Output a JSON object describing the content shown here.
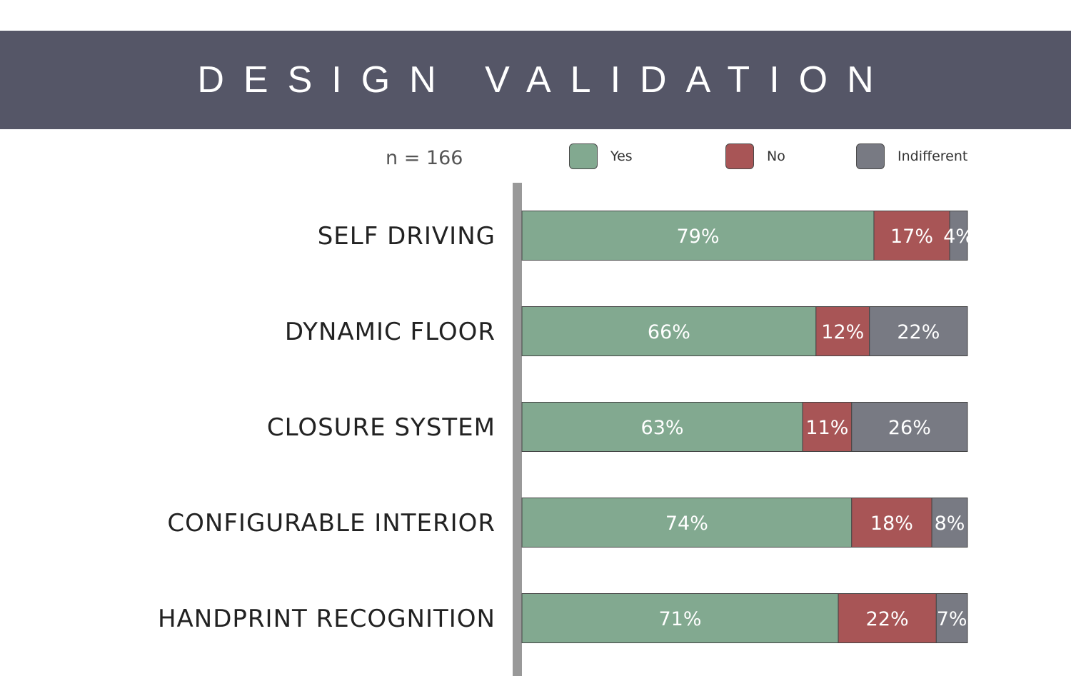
{
  "header": {
    "title": "DESIGN VALIDATION"
  },
  "sample_size": "n = 166",
  "legend": [
    {
      "label": "Yes",
      "color": "#82a990"
    },
    {
      "label": "No",
      "color": "#a85556"
    },
    {
      "label": "Indifferent",
      "color": "#787a83"
    }
  ],
  "chart_data": {
    "type": "bar",
    "orientation": "horizontal",
    "stacked": true,
    "percent": true,
    "title": "DESIGN VALIDATION",
    "categories": [
      "SELF DRIVING",
      "DYNAMIC FLOOR",
      "CLOSURE SYSTEM",
      "CONFIGURABLE INTERIOR",
      "HANDPRINT RECOGNITION"
    ],
    "series": [
      {
        "name": "Yes",
        "color": "#82a990",
        "values": [
          79,
          66,
          63,
          74,
          71
        ],
        "labels": [
          "79%",
          "66%",
          "63%",
          "74%",
          "71%"
        ]
      },
      {
        "name": "No",
        "color": "#a85556",
        "values": [
          17,
          12,
          11,
          18,
          22
        ],
        "labels": [
          "17%",
          "12%",
          "11%",
          "18%",
          "22%"
        ]
      },
      {
        "name": "Indifferent",
        "color": "#787a83",
        "values": [
          4,
          22,
          26,
          8,
          7
        ],
        "labels": [
          "4%",
          "22%",
          "26%",
          "8%",
          "7%"
        ]
      }
    ],
    "xlim": [
      0,
      100
    ],
    "legend_position": "top",
    "grid": false
  }
}
